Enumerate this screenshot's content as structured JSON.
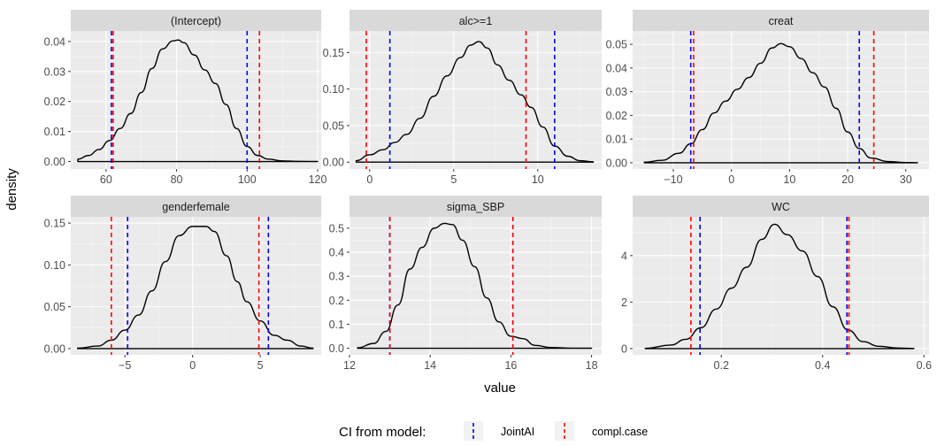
{
  "chart_data": {
    "type": "line",
    "xlabel": "value",
    "ylabel": "density",
    "colors": {
      "panel_bg": "#ebebeb",
      "strip_bg": "#d9d9d9",
      "grid_major": "#ffffff",
      "density_line": "#000000",
      "JointAI": "#0000ff",
      "compl.case": "#ff0000"
    },
    "legend": {
      "title": "CI from model:",
      "position": "bottom",
      "entries": [
        {
          "label": "JointAI",
          "color": "#0000ff"
        },
        {
          "label": "compl.case",
          "color": "#ff0000"
        }
      ]
    },
    "panels": [
      {
        "title": "(Intercept)",
        "xlim": [
          50,
          121
        ],
        "ylim": [
          -0.0025,
          0.0435
        ],
        "xticks": [
          60,
          80,
          100,
          120
        ],
        "xtick_labels": [
          "60",
          "80",
          "100",
          "120"
        ],
        "yticks": [
          0,
          0.01,
          0.02,
          0.03,
          0.04
        ],
        "ytick_labels": [
          "0.00",
          "0.01",
          "0.02",
          "0.03",
          "0.04"
        ],
        "density": {
          "x": [
            52,
            55,
            58,
            61,
            64,
            67,
            70,
            73,
            76,
            79,
            80.5,
            82,
            85,
            88,
            91,
            94,
            97,
            100,
            103,
            106,
            110,
            115,
            120
          ],
          "y": [
            0.0008,
            0.002,
            0.004,
            0.007,
            0.011,
            0.016,
            0.023,
            0.031,
            0.0375,
            0.0402,
            0.0405,
            0.0396,
            0.0355,
            0.0305,
            0.026,
            0.019,
            0.011,
            0.005,
            0.002,
            0.0008,
            0.0002,
            5e-05,
            1e-05
          ]
        },
        "ci": {
          "JointAI": [
            61.5,
            100
          ],
          "compl.case": [
            62,
            103.5
          ]
        }
      },
      {
        "title": "alc>=1",
        "xlim": [
          -1.2,
          13.8
        ],
        "ylim": [
          -0.0094,
          0.1794
        ],
        "xticks": [
          0,
          5,
          10
        ],
        "xtick_labels": [
          "0",
          "5",
          "10"
        ],
        "yticks": [
          0,
          0.05,
          0.1,
          0.15
        ],
        "ytick_labels": [
          "0.00",
          "0.05",
          "0.10",
          "0.15"
        ],
        "density": {
          "x": [
            -0.8,
            0,
            0.8,
            1.5,
            2.2,
            3,
            3.8,
            4.6,
            5.4,
            6,
            6.5,
            7,
            7.6,
            8.3,
            9,
            9.6,
            10.3,
            11,
            11.8,
            12.5,
            13.3
          ],
          "y": [
            0.002,
            0.01,
            0.017,
            0.027,
            0.038,
            0.06,
            0.09,
            0.118,
            0.143,
            0.16,
            0.165,
            0.156,
            0.133,
            0.112,
            0.092,
            0.075,
            0.048,
            0.022,
            0.008,
            0.002,
            0.0005
          ]
        },
        "ci": {
          "JointAI": [
            1.2,
            11
          ],
          "compl.case": [
            -0.2,
            9.3
          ]
        }
      },
      {
        "title": "creat",
        "xlim": [
          -17,
          34
        ],
        "ylim": [
          -0.00265,
          0.05565
        ],
        "xticks": [
          -10,
          0,
          10,
          20,
          30
        ],
        "xtick_labels": [
          "−10",
          "0",
          "10",
          "20",
          "30"
        ],
        "yticks": [
          0,
          0.01,
          0.02,
          0.03,
          0.04,
          0.05
        ],
        "ytick_labels": [
          "0.00",
          "0.01",
          "0.02",
          "0.03",
          "0.04",
          "0.05"
        ],
        "density": {
          "x": [
            -15,
            -12,
            -9,
            -7,
            -5,
            -3,
            -1,
            1,
            3,
            5,
            7,
            8.5,
            10,
            12,
            14,
            16,
            18,
            20,
            22,
            24,
            27,
            30,
            32
          ],
          "y": [
            0.0002,
            0.001,
            0.004,
            0.008,
            0.014,
            0.021,
            0.026,
            0.031,
            0.036,
            0.042,
            0.0485,
            0.0503,
            0.049,
            0.044,
            0.038,
            0.032,
            0.023,
            0.013,
            0.006,
            0.002,
            0.0005,
            0.0001,
            3e-05
          ]
        },
        "ci": {
          "JointAI": [
            -7,
            22
          ],
          "compl.case": [
            -6.5,
            24.5
          ]
        }
      },
      {
        "title": "genderfemale",
        "xlim": [
          -9,
          9.5
        ],
        "ylim": [
          -0.0075,
          0.1575
        ],
        "xticks": [
          -5,
          0,
          5
        ],
        "xtick_labels": [
          "−5",
          "0",
          "5"
        ],
        "yticks": [
          0,
          0.05,
          0.1,
          0.15
        ],
        "ytick_labels": [
          "0.00",
          "0.05",
          "0.10",
          "0.15"
        ],
        "density": {
          "x": [
            -8.5,
            -7,
            -6,
            -5,
            -4,
            -3,
            -2,
            -1,
            0,
            1,
            1.6,
            2.5,
            3.3,
            4,
            5,
            6,
            7,
            8,
            8.9
          ],
          "y": [
            0.0005,
            0.003,
            0.01,
            0.022,
            0.04,
            0.069,
            0.104,
            0.135,
            0.146,
            0.146,
            0.14,
            0.111,
            0.08,
            0.056,
            0.033,
            0.016,
            0.01,
            0.003,
            0.0005
          ]
        },
        "ci": {
          "JointAI": [
            -4.8,
            5.6
          ],
          "compl.case": [
            -6,
            4.9
          ]
        }
      },
      {
        "title": "sigma_SBP",
        "xlim": [
          12,
          18.25
        ],
        "ylim": [
          -0.0275,
          0.5475
        ],
        "xticks": [
          12,
          14,
          16,
          18
        ],
        "xtick_labels": [
          "12",
          "14",
          "16",
          "18"
        ],
        "yticks": [
          0,
          0.1,
          0.2,
          0.3,
          0.4,
          0.5
        ],
        "ytick_labels": [
          "0.0",
          "0.1",
          "0.2",
          "0.3",
          "0.4",
          "0.5"
        ],
        "density": {
          "x": [
            12.2,
            12.6,
            12.9,
            13.2,
            13.5,
            13.8,
            14.1,
            14.35,
            14.55,
            14.8,
            15.1,
            15.4,
            15.7,
            16,
            16.3,
            16.6,
            17,
            17.5,
            18
          ],
          "y": [
            0.002,
            0.02,
            0.07,
            0.18,
            0.33,
            0.42,
            0.5,
            0.52,
            0.515,
            0.45,
            0.34,
            0.21,
            0.11,
            0.05,
            0.04,
            0.012,
            0.003,
            0.0005,
            0.0001
          ]
        },
        "ci": {
          "JointAI": [
            13,
            16.05
          ],
          "compl.case": [
            13,
            16.05
          ]
        }
      },
      {
        "title": "WC",
        "xlim": [
          0.025,
          0.61
        ],
        "ylim": [
          -0.27,
          5.67
        ],
        "xticks": [
          0.2,
          0.4,
          0.6
        ],
        "xtick_labels": [
          "0.2",
          "0.4",
          "0.6"
        ],
        "yticks": [
          0,
          2,
          4
        ],
        "ytick_labels": [
          "0",
          "2",
          "4"
        ],
        "density": {
          "x": [
            0.05,
            0.1,
            0.13,
            0.16,
            0.19,
            0.22,
            0.25,
            0.28,
            0.305,
            0.33,
            0.36,
            0.39,
            0.42,
            0.45,
            0.48,
            0.51,
            0.55,
            0.58
          ],
          "y": [
            0.01,
            0.15,
            0.4,
            0.9,
            1.7,
            2.6,
            3.5,
            4.7,
            5.35,
            4.9,
            4.2,
            3.1,
            1.8,
            0.8,
            0.3,
            0.1,
            0.02,
            0.005
          ]
        },
        "ci": {
          "JointAI": [
            0.158,
            0.448
          ],
          "compl.case": [
            0.14,
            0.452
          ]
        }
      }
    ]
  }
}
